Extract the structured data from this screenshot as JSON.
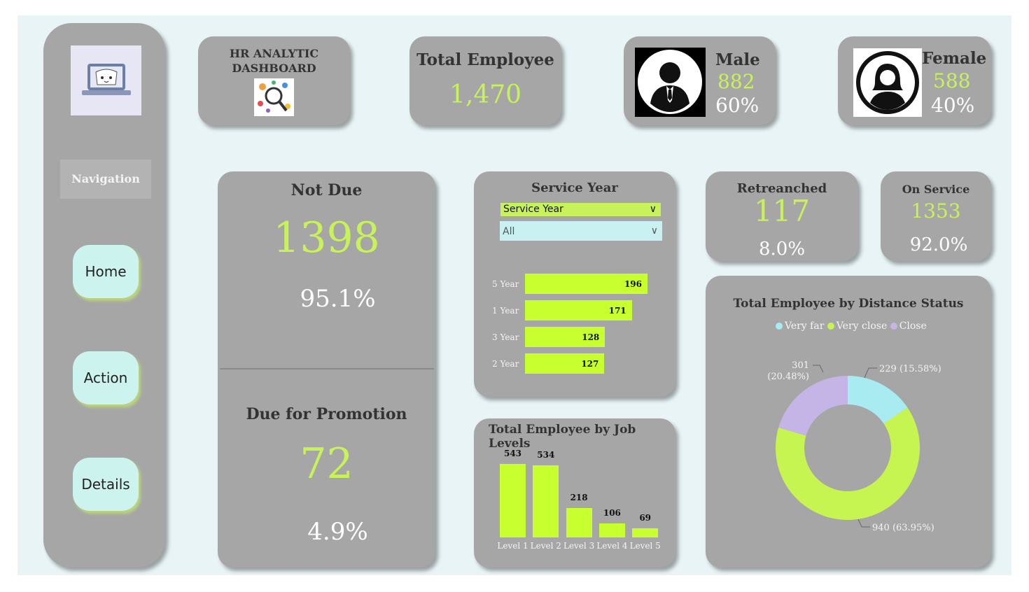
{
  "header": {
    "title_line1": "HR ANALYTIC",
    "title_line2": "DASHBOARD"
  },
  "nav": {
    "label": "Navigation",
    "buttons": [
      "Home",
      "Action",
      "Details"
    ]
  },
  "kpis": {
    "total_employee": {
      "label": "Total Employee",
      "value": "1,470"
    },
    "male": {
      "label": "Male",
      "value": "882",
      "percent": "60%"
    },
    "female": {
      "label": "Female",
      "value": "588",
      "percent": "40%"
    },
    "not_due": {
      "label": "Not Due",
      "value": "1398",
      "percent": "95.1%"
    },
    "due": {
      "label": "Due for Promotion",
      "value": "72",
      "percent": "4.9%"
    },
    "retrenched": {
      "label": "Retreanched",
      "value": "117",
      "percent": "8.0%"
    },
    "on_service": {
      "label": "On Service",
      "value": "1353",
      "percent": "92.0%"
    }
  },
  "service_year": {
    "title": "Service Year",
    "slicer_field": "Service Year",
    "slicer_value": "All"
  },
  "colors": {
    "accent": "#c8ff2e",
    "card": "#a6a6a6",
    "background": "#e8f4f6",
    "very_far": "#a8ecf2",
    "very_close": "#c6f551",
    "close": "#c5b4e6"
  },
  "chart_data": [
    {
      "type": "bar",
      "orientation": "horizontal",
      "title": "Service Year",
      "categories": [
        "5 Year",
        "1 Year",
        "3 Year",
        "2 Year"
      ],
      "values": [
        196,
        171,
        128,
        127
      ]
    },
    {
      "type": "bar",
      "title": "Total Employee by Job Levels",
      "categories": [
        "Level 1",
        "Level 2",
        "Level 3",
        "Level 4",
        "Level 5"
      ],
      "values": [
        543,
        534,
        218,
        106,
        69
      ]
    },
    {
      "type": "pie",
      "donut": true,
      "title": "Total Employee by Distance Status",
      "legend": [
        "Very far",
        "Very close",
        "Close"
      ],
      "legend_position": "top",
      "slices": [
        {
          "name": "Very far",
          "value": 229,
          "label": "229 (15.58%)"
        },
        {
          "name": "Very close",
          "value": 940,
          "label": "940 (63.95%)"
        },
        {
          "name": "Close",
          "value": 301,
          "label_line1": "301",
          "label_line2": "(20.48%)"
        }
      ]
    }
  ]
}
